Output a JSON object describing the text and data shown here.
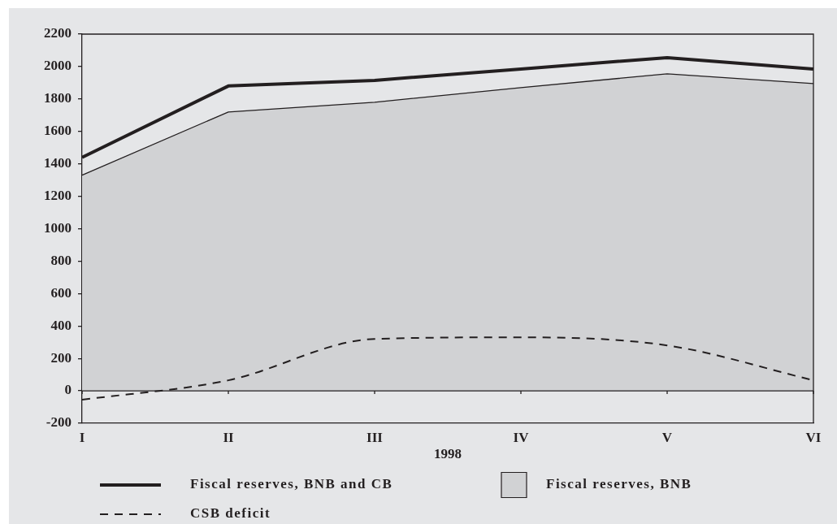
{
  "chart_data": {
    "type": "line",
    "xlabel": "1998",
    "categories": [
      "I",
      "II",
      "III",
      "IV",
      "V",
      "VI"
    ],
    "series": [
      {
        "name": "Fiscal reserves, BNB and CB",
        "color": "#231f20",
        "values": [
          1440,
          1880,
          1915,
          1985,
          2055,
          1985
        ]
      },
      {
        "name": "Fiscal reserves, BNB",
        "type": "area",
        "color": "#d1d2d4",
        "values": [
          1330,
          1720,
          1780,
          1870,
          1955,
          1895
        ]
      },
      {
        "name": "CSB deficit",
        "color": "#231f20",
        "line_style": "dashed",
        "values": [
          -55,
          65,
          320,
          330,
          280,
          65
        ]
      }
    ],
    "ylim": [
      -200,
      2200
    ],
    "yticks": [
      -200,
      0,
      200,
      400,
      600,
      800,
      1000,
      1200,
      1400,
      1600,
      1800,
      2000,
      2200
    ],
    "grid": false,
    "legend": "bottom",
    "marker": "none",
    "line_style": "solid",
    "ref_lines": [
      {
        "axis": "y",
        "value": 0,
        "color": "#231f20"
      }
    ]
  }
}
